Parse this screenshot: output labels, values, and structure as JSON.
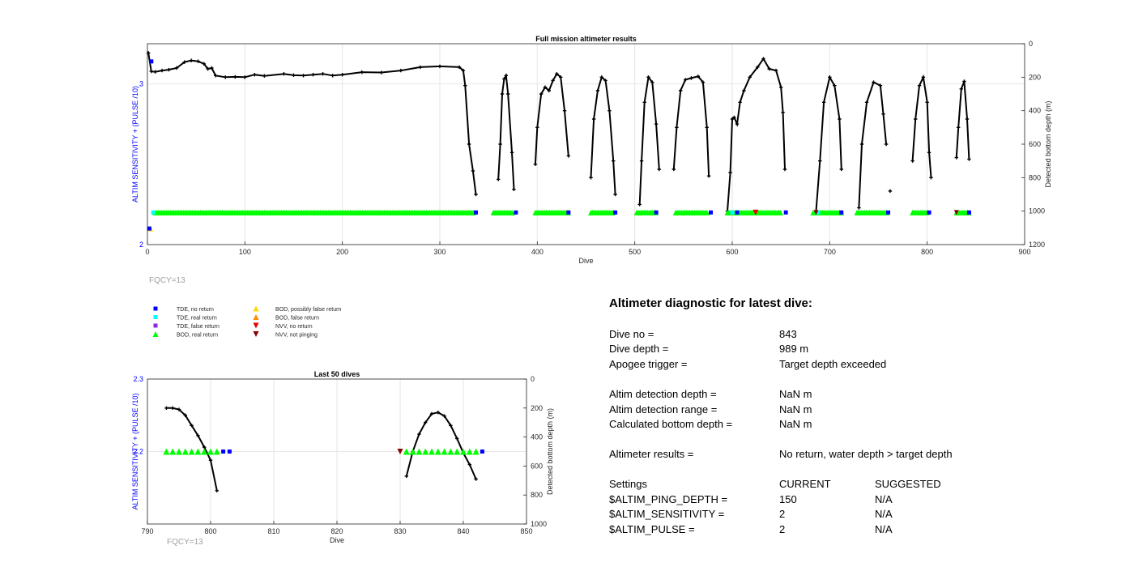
{
  "colors": {
    "tde_no_return": "#0000ff",
    "tde_real_return": "#00ffff",
    "tde_false_return": "#8a2be2",
    "bod_real_return": "#00ff00",
    "bod_possibly_false": "#ffd700",
    "bod_false": "#ff8c00",
    "nvv_no_return": "#e60000",
    "nvv_not_pinging": "#8b0000",
    "depth_line": "#000000",
    "left_axis": "#0000ff",
    "grid": "#e6e6e6",
    "fqcy_text": "#a0a0a0"
  },
  "chart_data": [
    {
      "type": "line",
      "title": "Full mission altimeter results",
      "xlabel": "Dive",
      "ylabel_left": "ALTIM SENSITIVITY + (PULSE /10)",
      "ylabel_right": "Detected bottom depth (m)",
      "xlim": [
        0,
        900
      ],
      "xticks": [
        0,
        100,
        200,
        300,
        400,
        500,
        600,
        700,
        800,
        900
      ],
      "ylim_left": [
        2,
        3.25
      ],
      "yticks_left": [
        2,
        3
      ],
      "ylim_right": [
        1200,
        0
      ],
      "yticks_right": [
        0,
        200,
        400,
        600,
        800,
        1000,
        1200
      ],
      "grid": true,
      "annotation": "FQCY=13",
      "depth_series": {
        "name": "Detected bottom depth",
        "points": [
          [
            1,
            55
          ],
          [
            4,
            165
          ],
          [
            8,
            168
          ],
          [
            15,
            160
          ],
          [
            22,
            155
          ],
          [
            30,
            145
          ],
          [
            38,
            110
          ],
          [
            45,
            100
          ],
          [
            52,
            105
          ],
          [
            58,
            120
          ],
          [
            62,
            150
          ],
          [
            66,
            145
          ],
          [
            70,
            190
          ],
          [
            80,
            200
          ],
          [
            90,
            198
          ],
          [
            100,
            200
          ],
          [
            110,
            185
          ],
          [
            120,
            192
          ],
          [
            140,
            180
          ],
          [
            150,
            188
          ],
          [
            160,
            190
          ],
          [
            170,
            185
          ],
          [
            180,
            180
          ],
          [
            190,
            190
          ],
          [
            200,
            185
          ],
          [
            220,
            170
          ],
          [
            240,
            172
          ],
          [
            260,
            160
          ],
          [
            280,
            140
          ],
          [
            300,
            135
          ],
          [
            320,
            140
          ],
          [
            324,
            160
          ],
          [
            326,
            250
          ],
          [
            330,
            600
          ],
          [
            334,
            760
          ],
          [
            337,
            900
          ],
          [
            360,
            810
          ],
          [
            362,
            600
          ],
          [
            364,
            300
          ],
          [
            366,
            210
          ],
          [
            368,
            190
          ],
          [
            370,
            300
          ],
          [
            374,
            650
          ],
          [
            376,
            870
          ],
          [
            398,
            720
          ],
          [
            400,
            500
          ],
          [
            404,
            300
          ],
          [
            408,
            260
          ],
          [
            412,
            280
          ],
          [
            416,
            220
          ],
          [
            420,
            180
          ],
          [
            424,
            200
          ],
          [
            428,
            400
          ],
          [
            432,
            670
          ],
          [
            455,
            800
          ],
          [
            458,
            450
          ],
          [
            462,
            280
          ],
          [
            466,
            200
          ],
          [
            470,
            220
          ],
          [
            474,
            400
          ],
          [
            478,
            700
          ],
          [
            480,
            900
          ],
          [
            505,
            960
          ],
          [
            507,
            700
          ],
          [
            510,
            350
          ],
          [
            514,
            200
          ],
          [
            518,
            230
          ],
          [
            522,
            480
          ],
          [
            525,
            750
          ],
          [
            540,
            750
          ],
          [
            543,
            500
          ],
          [
            547,
            280
          ],
          [
            552,
            215
          ],
          [
            558,
            205
          ],
          [
            565,
            195
          ],
          [
            570,
            230
          ],
          [
            574,
            500
          ],
          [
            576,
            790
          ],
          [
            595,
            1000
          ],
          [
            598,
            770
          ],
          [
            600,
            450
          ],
          [
            602,
            440
          ],
          [
            605,
            480
          ],
          [
            608,
            350
          ],
          [
            612,
            280
          ],
          [
            618,
            200
          ],
          [
            626,
            140
          ],
          [
            632,
            90
          ],
          [
            638,
            150
          ],
          [
            645,
            160
          ],
          [
            650,
            260
          ],
          [
            652,
            410
          ],
          [
            654,
            750
          ],
          [
            686,
            1000
          ],
          [
            690,
            700
          ],
          [
            694,
            350
          ],
          [
            700,
            200
          ],
          [
            705,
            250
          ],
          [
            710,
            450
          ],
          [
            712,
            750
          ],
          [
            730,
            980
          ],
          [
            733,
            600
          ],
          [
            738,
            350
          ],
          [
            745,
            230
          ],
          [
            752,
            250
          ],
          [
            755,
            420
          ],
          [
            758,
            600
          ],
          [
            762,
            880
          ],
          [
            785,
            700
          ],
          [
            788,
            450
          ],
          [
            792,
            250
          ],
          [
            796,
            200
          ],
          [
            800,
            350
          ],
          [
            802,
            650
          ],
          [
            804,
            800
          ],
          [
            830,
            680
          ],
          [
            832,
            500
          ],
          [
            835,
            270
          ],
          [
            838,
            225
          ],
          [
            841,
            450
          ],
          [
            843,
            690
          ]
        ]
      },
      "sensitivity_series": {
        "name": "ALTIM SENSITIVITY + (PULSE /10)",
        "bod_real_segments": [
          [
            8,
            335
          ],
          [
            355,
            375
          ],
          [
            398,
            432
          ],
          [
            455,
            478
          ],
          [
            502,
            522
          ],
          [
            542,
            575
          ],
          [
            595,
            650
          ],
          [
            683,
            712
          ],
          [
            728,
            760
          ],
          [
            785,
            800
          ],
          [
            830,
            843
          ]
        ],
        "bod_real_value": 2.2,
        "tde_no_return_dives": [
          337,
          378,
          432,
          480,
          522,
          578,
          605,
          655,
          712,
          760,
          802,
          843
        ],
        "tde_real_return_dives": [
          6,
          600,
          688
        ],
        "nvv_no_return_dives": [
          624
        ],
        "nvv_not_pinging_dives": [
          686,
          830
        ],
        "bod_possibly_false_dives": [
          3
        ],
        "tde_no_return_early": [
          [
            4,
            3.14
          ],
          [
            2,
            2.1
          ]
        ]
      }
    },
    {
      "type": "line",
      "title": "Last 50 dives",
      "xlabel": "Dive",
      "ylabel_left": "ALTIM SENSITIVITY + (PULSE /10)",
      "ylabel_right": "Detected bottom depth (m)",
      "xlim": [
        790,
        850
      ],
      "xticks": [
        790,
        800,
        810,
        820,
        830,
        840,
        850
      ],
      "ylim_left": [
        2.1,
        2.3
      ],
      "yticks_left": [
        2.2,
        2.3
      ],
      "ylim_right": [
        1000,
        0
      ],
      "yticks_right": [
        0,
        200,
        400,
        600,
        800,
        1000
      ],
      "grid": true,
      "annotation": "FQCY=13",
      "depth_series": {
        "name": "Detected bottom depth",
        "segments": [
          [
            [
              793,
              200
            ],
            [
              794,
              200
            ],
            [
              795,
              210
            ],
            [
              796,
              250
            ],
            [
              797,
              320
            ],
            [
              798,
              390
            ],
            [
              799,
              470
            ],
            [
              800,
              560
            ],
            [
              801,
              770
            ]
          ],
          [
            [
              831,
              670
            ],
            [
              832,
              500
            ],
            [
              833,
              380
            ],
            [
              834,
              300
            ],
            [
              835,
              240
            ],
            [
              836,
              230
            ],
            [
              837,
              255
            ],
            [
              838,
              320
            ],
            [
              839,
              410
            ],
            [
              840,
              510
            ],
            [
              841,
              590
            ],
            [
              842,
              690
            ]
          ]
        ]
      },
      "sensitivity_series": {
        "name": "ALTIM SENSITIVITY + (PULSE /10)",
        "bod_real_dives": [
          793,
          794,
          795,
          796,
          797,
          798,
          799,
          800,
          801,
          831,
          832,
          833,
          834,
          835,
          836,
          837,
          838,
          839,
          840,
          841,
          842
        ],
        "tde_no_return_dives": [
          802,
          803,
          843
        ],
        "nvv_not_pinging_dives": [
          830
        ],
        "value": 2.2
      }
    }
  ],
  "legend": {
    "col1": [
      {
        "label": "TDE, no return",
        "marker": "square",
        "color": "#0000ff"
      },
      {
        "label": "TDE, real return",
        "marker": "square",
        "color": "#00ffff"
      },
      {
        "label": "TDE, false return",
        "marker": "square",
        "color": "#8a2be2"
      },
      {
        "label": "BOD, real return",
        "marker": "triangle-up",
        "color": "#00ff00"
      }
    ],
    "col2": [
      {
        "label": "BOD, possibly false return",
        "marker": "triangle-up",
        "color": "#ffd700"
      },
      {
        "label": "BOD, false return",
        "marker": "triangle-up",
        "color": "#ff8c00"
      },
      {
        "label": "NVV, no return",
        "marker": "triangle-down",
        "color": "#e60000"
      },
      {
        "label": "NVV, not pinging",
        "marker": "triangle-down",
        "color": "#8b0000"
      }
    ]
  },
  "diagnostic": {
    "title": "Altimeter diagnostic for latest dive:",
    "dive_no_label": "Dive no =",
    "dive_no_value": "843",
    "dive_depth_label": "Dive depth =",
    "dive_depth_value": "989 m",
    "apogee_label": "Apogee trigger =",
    "apogee_value": "Target depth exceeded",
    "altim_det_depth_label": "Altim detection depth =",
    "altim_det_depth_value": "NaN m",
    "altim_det_range_label": "Altim detection range =",
    "altim_det_range_value": "NaN m",
    "calc_bottom_label": "Calculated bottom depth =",
    "calc_bottom_value": "NaN m",
    "results_label": "Altimeter results =",
    "results_value": "No return, water depth > target depth",
    "settings_label": "Settings",
    "current_label": "CURRENT",
    "suggested_label": "SUGGESTED",
    "settings": [
      {
        "name": "$ALTIM_PING_DEPTH =",
        "current": "150",
        "suggested": "N/A"
      },
      {
        "name": "$ALTIM_SENSITIVITY =",
        "current": "2",
        "suggested": "N/A"
      },
      {
        "name": "$ALTIM_PULSE =",
        "current": "2",
        "suggested": "N/A"
      }
    ]
  }
}
